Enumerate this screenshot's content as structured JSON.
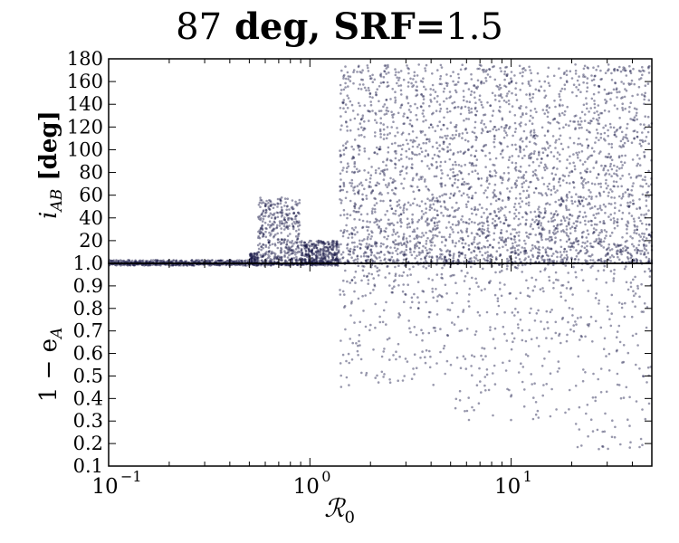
{
  "title": {
    "part1": "87",
    "part2": " deg, SRF=",
    "part3": "1.5"
  },
  "colors": {
    "points": "#1a1a4a",
    "axis": "#000000"
  },
  "chart_data": [
    {
      "type": "scatter",
      "panel": "top",
      "ylabel": {
        "symbol": "i",
        "sub": "AB",
        "unit": " [deg]"
      },
      "ylim": [
        0,
        180
      ],
      "yticks": [
        20,
        40,
        60,
        80,
        100,
        120,
        140,
        160,
        180
      ],
      "xscale": "log",
      "xlim": [
        0.1,
        50
      ],
      "grid": false,
      "series": [
        {
          "regime": [
            {
              "x_range": [
                0.1,
                0.5
              ],
              "y_min": 0,
              "y_max": 3
            },
            {
              "x_range": [
                0.5,
                0.55
              ],
              "y_min": 0,
              "y_max": 10
            },
            {
              "x_range": [
                0.55,
                0.9
              ],
              "y_min": 0,
              "y_max": 58
            },
            {
              "x_range": [
                0.9,
                1.4
              ],
              "y_min": 0,
              "y_max": 20
            },
            {
              "x_range": [
                1.4,
                50
              ],
              "y_min": 0,
              "y_max": 175
            }
          ]
        }
      ]
    },
    {
      "type": "scatter",
      "panel": "bottom",
      "ylabel": {
        "text": "1 − e",
        "sub": "A"
      },
      "ylim": [
        0.1,
        1.0
      ],
      "yticks": [
        "0.1",
        "0.2",
        "0.3",
        "0.4",
        "0.5",
        "0.6",
        "0.7",
        "0.8",
        "0.9",
        "1.0"
      ],
      "xscale": "log",
      "xlim": [
        0.1,
        50
      ],
      "xticks": [
        {
          "base": "10",
          "exp": "−1",
          "value": 0.1
        },
        {
          "base": "10",
          "exp": "0",
          "value": 1
        },
        {
          "base": "10",
          "exp": "1",
          "value": 10
        }
      ],
      "xlabel": "ℛ",
      "xlabel_sub": "0",
      "grid": false,
      "series": [
        {
          "regime": [
            {
              "x_range": [
                0.1,
                1.4
              ],
              "y_min": 0.99,
              "y_max": 1.0
            },
            {
              "x_range": [
                1.4,
                5
              ],
              "y_min": 0.45,
              "y_max": 1.0
            },
            {
              "x_range": [
                5,
                20
              ],
              "y_min": 0.3,
              "y_max": 1.0
            },
            {
              "x_range": [
                20,
                50
              ],
              "y_min": 0.17,
              "y_max": 1.0
            }
          ]
        }
      ]
    }
  ]
}
